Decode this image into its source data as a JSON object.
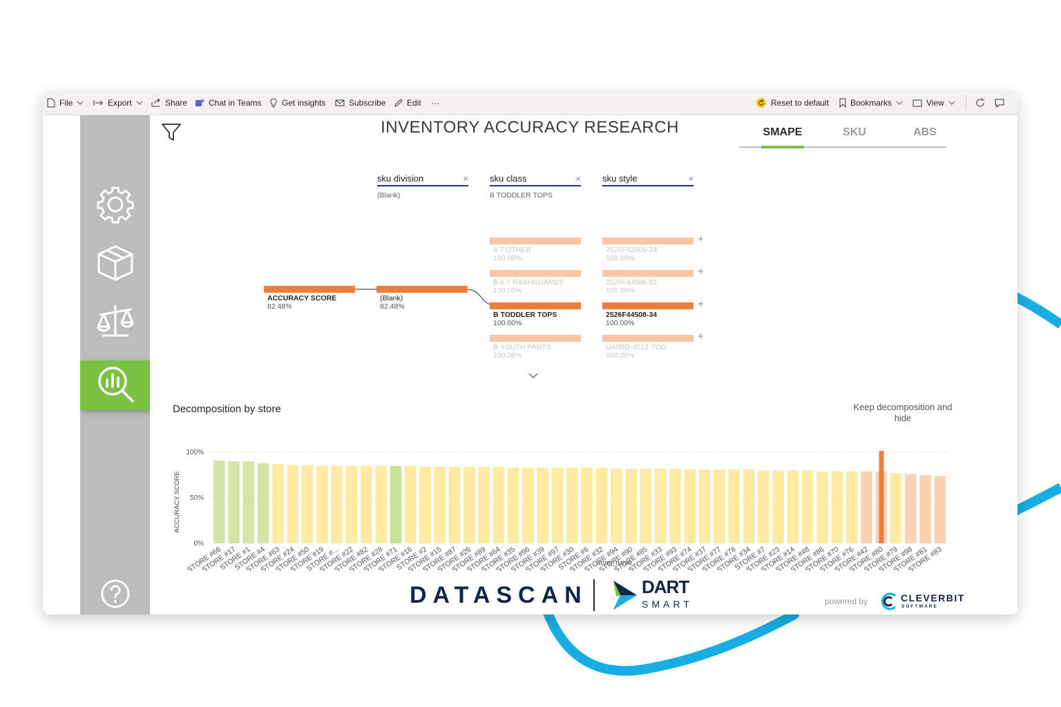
{
  "toolbar": {
    "file": "File",
    "export": "Export",
    "share": "Share",
    "chat": "Chat in Teams",
    "insights": "Get insights",
    "subscribe": "Subscribe",
    "edit": "Edit",
    "more": "···",
    "reset": "Reset to default",
    "bookmarks": "Bookmarks",
    "view": "View"
  },
  "report": {
    "title": "INVENTORY ACCURACY RESEARCH",
    "tabs": [
      "SMAPE",
      "SKU",
      "ABS"
    ],
    "active_tab": "SMAPE"
  },
  "tree": {
    "levels": [
      {
        "label": "sku division",
        "selected": "(Blank)"
      },
      {
        "label": "sku class",
        "selected": "B TODDLER TOPS"
      },
      {
        "label": "sku style",
        "selected": ""
      }
    ],
    "root": {
      "name": "ACCURACY SCORE",
      "value": "82.48%"
    },
    "division": {
      "name": "(Blank)",
      "value": "82.48%"
    },
    "classes": [
      {
        "name": "4-7 OTHER",
        "value": "100.00%"
      },
      {
        "name": "B 4-7 RASHGUARDS",
        "value": "100.00%"
      },
      {
        "name": "B TODDLER TOPS",
        "value": "100.00%"
      },
      {
        "name": "B YOUTH PANTS",
        "value": "100.00%"
      }
    ],
    "styles": [
      {
        "name": "2526F42506-34",
        "value": "100.00%"
      },
      {
        "name": "2526F44506-82",
        "value": "100.00%"
      },
      {
        "name": "2526F44508-34",
        "value": "100.00%"
      },
      {
        "name": "UA0BD-4512-TOD",
        "value": "100.00%"
      }
    ],
    "close_glyph": "×",
    "plus_glyph": "+"
  },
  "chart_data": {
    "type": "bar",
    "title": "Decomposition by store",
    "xlabel": "store_name",
    "ylabel": "ACCURACY SCORE",
    "ylim": [
      0,
      1
    ],
    "yticks": [
      "100%",
      "50%",
      "0%"
    ],
    "tooltip": "Keep decomposition and hide",
    "categories": [
      "STORE #66",
      "STORE #17",
      "STORE #1",
      "STORE #4",
      "STORE #63",
      "STORE #24",
      "STORE #50",
      "STORE #19",
      "STORE #...",
      "STORE #22",
      "STORE #82",
      "STORE #28",
      "STORE #71",
      "STORE #16",
      "STORE #2",
      "STORE #15",
      "STORE #87",
      "STORE #26",
      "STORE #89",
      "STORE #64",
      "STORE #35",
      "STORE #96",
      "STORE #39",
      "STORE #97",
      "STORE #30",
      "STORE #6",
      "STORE #32",
      "STORE #94",
      "STORE #90",
      "STORE #85",
      "STORE #33",
      "STORE #93",
      "STORE #74",
      "STORE #37",
      "STORE #77",
      "STORE #78",
      "STORE #34",
      "STORE #7",
      "STORE #23",
      "STORE #14",
      "STORE #48",
      "STORE #86",
      "STORE #70",
      "STORE #76",
      "STORE #42",
      "STORE #80",
      "STORE #79",
      "STORE #98",
      "STORE #81",
      "STORE #83"
    ],
    "values": [
      0.91,
      0.9,
      0.9,
      0.88,
      0.87,
      0.86,
      0.86,
      0.85,
      0.85,
      0.85,
      0.85,
      0.85,
      0.85,
      0.85,
      0.84,
      0.84,
      0.84,
      0.84,
      0.84,
      0.84,
      0.83,
      0.83,
      0.83,
      0.83,
      0.83,
      0.83,
      0.83,
      0.82,
      0.82,
      0.82,
      0.82,
      0.82,
      0.81,
      0.81,
      0.81,
      0.81,
      0.81,
      0.8,
      0.8,
      0.8,
      0.8,
      0.79,
      0.79,
      0.79,
      0.79,
      1.0,
      0.77,
      0.76,
      0.75,
      0.74
    ],
    "bar_colors": [
      "#d3e6a6",
      "#d3e6a6",
      "#d3e6a6",
      "#d3e6a6",
      "#feeaa0",
      "#feeaa0",
      "#feeaa0",
      "#feeaa0",
      "#feeaa0",
      "#feeaa0",
      "#feeaa0",
      "#feeaa0",
      "#c8e29a",
      "#feeaa0",
      "#feeaa0",
      "#feeaa0",
      "#feeaa0",
      "#feeaa0",
      "#feeaa0",
      "#feeaa0",
      "#feeaa0",
      "#feeaa0",
      "#feeaa0",
      "#feeaa0",
      "#feeaa0",
      "#feeaa0",
      "#feeaa0",
      "#feeaa0",
      "#feeaa0",
      "#feeaa0",
      "#feeaa0",
      "#feeaa0",
      "#feeaa0",
      "#feeaa0",
      "#feeaa0",
      "#feeaa0",
      "#feeaa0",
      "#feeaa0",
      "#feeaa0",
      "#feeaa0",
      "#feeaa0",
      "#feeaa0",
      "#feeaa0",
      "#feeaa0",
      "#f9d3b4",
      "#ec7f3a",
      "#feeaa0",
      "#f9d3b4",
      "#f9d3b4",
      "#f9d3b4"
    ],
    "highlighted_store": "STORE #80"
  },
  "branding": {
    "datascan": "DATASCAN",
    "dart": "DART",
    "smart": "SMART",
    "powered_by": "powered by",
    "cleverbit": "CLEVERBIT",
    "cleverbit_sub": "SOFTWARE"
  },
  "colors": {
    "accent_green": "#7cc242",
    "node_orange": "#ec7f3a",
    "node_light": "#f8c6a6",
    "sidebar_gray": "#bcbcbc",
    "navy": "#14254a",
    "deco_blue": "#18aee4"
  },
  "icons": [
    "file-icon",
    "export-icon",
    "share-icon",
    "teams-icon",
    "lightbulb-icon",
    "mail-icon",
    "pencil-icon",
    "reset-icon",
    "bookmark-icon",
    "view-icon",
    "refresh-icon",
    "comment-icon",
    "gear-icon",
    "cube-icon",
    "scale-icon",
    "chart-search-icon",
    "help-icon",
    "filter-icon",
    "chevron-down-icon"
  ]
}
